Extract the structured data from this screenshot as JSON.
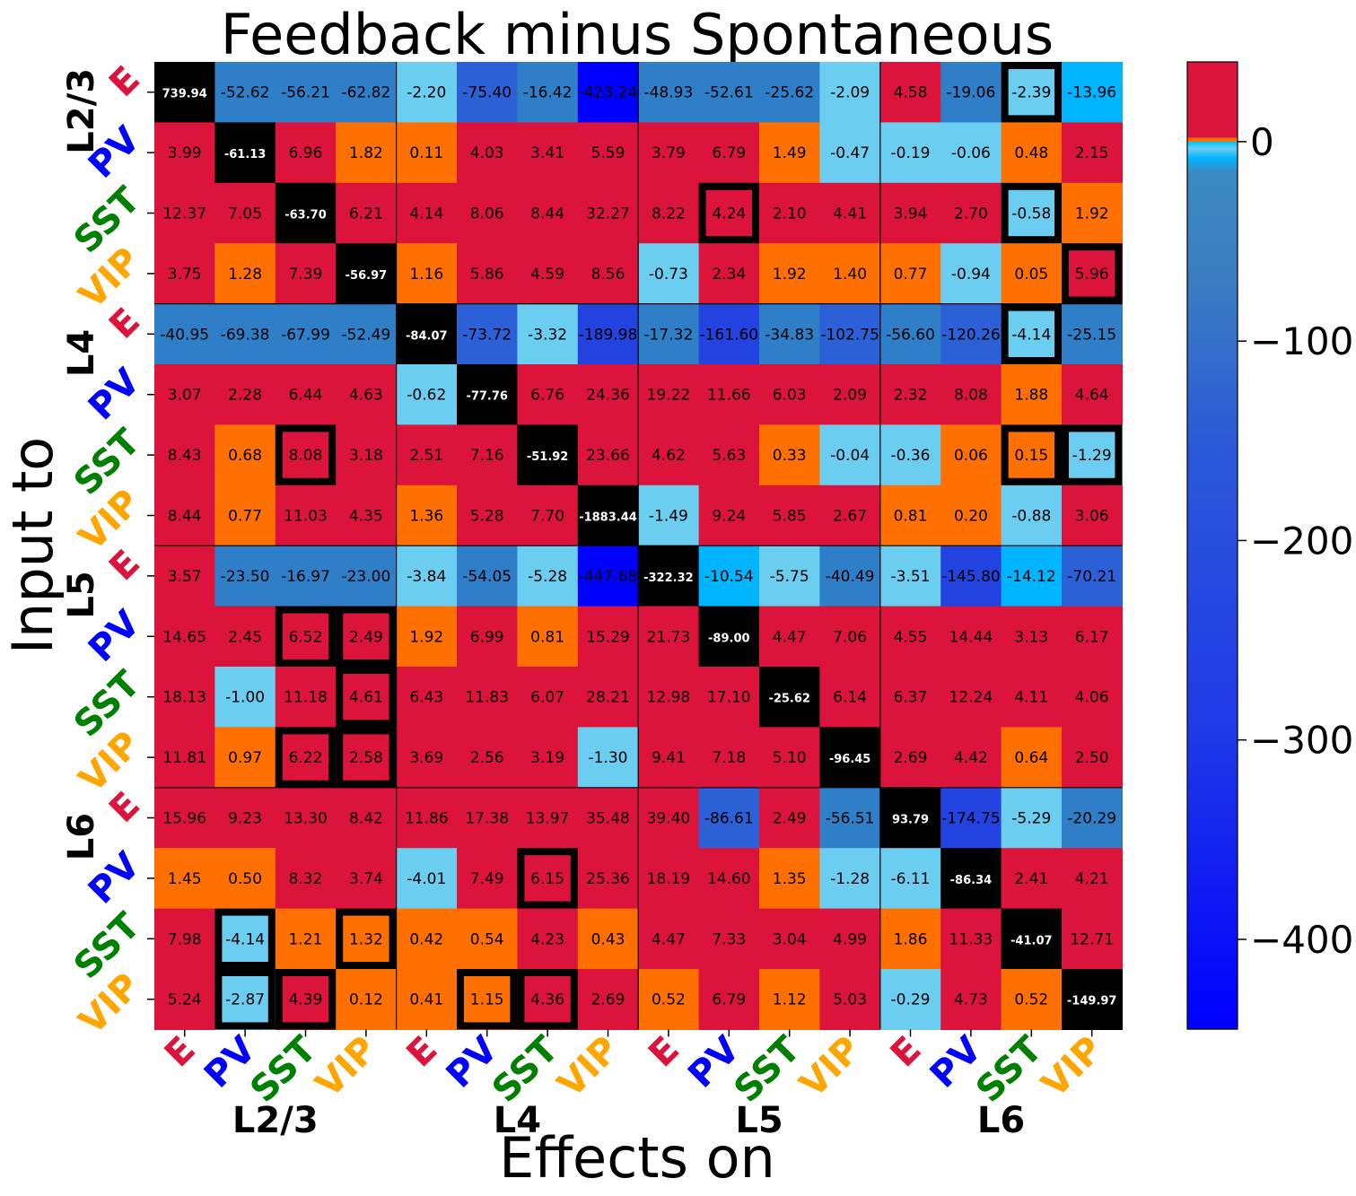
{
  "chart_data": {
    "type": "heatmap",
    "title": "Feedback minus Spontaneous",
    "xlabel": "Effects on",
    "ylabel": "Input to",
    "layers": [
      "L2/3",
      "L4",
      "L5",
      "L6"
    ],
    "cell_types": [
      "E",
      "PV",
      "SST",
      "VIP"
    ],
    "cell_type_colors": {
      "E": "#dc143c",
      "PV": "#0000ff",
      "SST": "#008000",
      "VIP": "#ffa500"
    },
    "x_tick_labels": [
      "E",
      "PV",
      "SST",
      "VIP",
      "E",
      "PV",
      "SST",
      "VIP",
      "E",
      "PV",
      "SST",
      "VIP",
      "E",
      "PV",
      "SST",
      "VIP"
    ],
    "y_tick_labels": [
      "E",
      "PV",
      "SST",
      "VIP",
      "E",
      "PV",
      "SST",
      "VIP",
      "E",
      "PV",
      "SST",
      "VIP",
      "E",
      "PV",
      "SST",
      "VIP"
    ],
    "values": [
      [
        739.94,
        -52.62,
        -56.21,
        -62.82,
        -2.2,
        -75.4,
        -16.42,
        -423.24,
        -48.93,
        -52.61,
        -25.62,
        -2.09,
        4.58,
        -19.06,
        -2.39,
        -13.96
      ],
      [
        3.99,
        -61.13,
        6.96,
        1.82,
        0.11,
        4.03,
        3.41,
        5.59,
        3.79,
        6.79,
        1.49,
        -0.47,
        -0.19,
        -0.06,
        0.48,
        2.15
      ],
      [
        12.37,
        7.05,
        -63.7,
        6.21,
        4.14,
        8.06,
        8.44,
        32.27,
        8.22,
        4.24,
        2.1,
        4.41,
        3.94,
        2.7,
        -0.58,
        1.92
      ],
      [
        3.75,
        1.28,
        7.39,
        -56.97,
        1.16,
        5.86,
        4.59,
        8.56,
        -0.73,
        2.34,
        1.92,
        1.4,
        0.77,
        -0.94,
        0.05,
        5.96
      ],
      [
        -40.95,
        -69.38,
        -67.99,
        -52.49,
        -84.07,
        -73.72,
        -3.32,
        -189.98,
        -17.32,
        -161.6,
        -34.83,
        -102.75,
        -56.6,
        -120.26,
        -4.14,
        -25.15
      ],
      [
        3.07,
        2.28,
        6.44,
        4.63,
        -0.62,
        -77.76,
        6.76,
        24.36,
        19.22,
        11.66,
        6.03,
        2.09,
        2.32,
        8.08,
        1.88,
        4.64
      ],
      [
        8.43,
        0.68,
        8.08,
        3.18,
        2.51,
        7.16,
        -51.92,
        23.66,
        4.62,
        5.63,
        0.33,
        -0.04,
        -0.36,
        0.06,
        0.15,
        -1.29
      ],
      [
        8.44,
        0.77,
        11.03,
        4.35,
        1.36,
        5.28,
        7.7,
        -1883.44,
        -1.49,
        9.24,
        5.85,
        2.67,
        0.81,
        0.2,
        -0.88,
        3.06
      ],
      [
        3.57,
        -23.5,
        -16.97,
        -23.0,
        -3.84,
        -54.05,
        -5.28,
        -447.68,
        -322.32,
        -10.54,
        -5.75,
        -40.49,
        -3.51,
        -145.8,
        -14.12,
        -70.21
      ],
      [
        14.65,
        2.45,
        6.52,
        2.49,
        1.92,
        6.99,
        0.81,
        15.29,
        21.73,
        -89.0,
        4.47,
        7.06,
        4.55,
        14.44,
        3.13,
        6.17
      ],
      [
        18.13,
        -1.0,
        11.18,
        4.61,
        6.43,
        11.83,
        6.07,
        28.21,
        12.98,
        17.1,
        -25.62,
        6.14,
        6.37,
        12.24,
        4.11,
        4.06
      ],
      [
        11.81,
        0.97,
        6.22,
        2.58,
        3.69,
        2.56,
        3.19,
        -1.3,
        9.41,
        7.18,
        5.1,
        -96.45,
        2.69,
        4.42,
        0.64,
        2.5
      ],
      [
        15.96,
        9.23,
        13.3,
        8.42,
        11.86,
        17.38,
        13.97,
        35.48,
        39.4,
        -86.61,
        2.49,
        -56.51,
        93.79,
        -174.75,
        -5.29,
        -20.29
      ],
      [
        1.45,
        0.5,
        8.32,
        3.74,
        -4.01,
        7.49,
        6.15,
        25.36,
        18.19,
        14.6,
        1.35,
        -1.28,
        -6.11,
        -86.34,
        2.41,
        4.21
      ],
      [
        7.98,
        -4.14,
        1.21,
        1.32,
        0.42,
        0.54,
        4.23,
        0.43,
        4.47,
        7.33,
        3.04,
        4.99,
        1.86,
        11.33,
        -41.07,
        12.71
      ],
      [
        5.24,
        -2.87,
        4.39,
        0.12,
        0.41,
        1.15,
        4.36,
        2.69,
        0.52,
        6.79,
        1.12,
        5.03,
        -0.29,
        4.73,
        0.52,
        -149.97
      ]
    ],
    "highlighted_cells": [
      [
        0,
        14
      ],
      [
        2,
        9
      ],
      [
        2,
        14
      ],
      [
        3,
        15
      ],
      [
        4,
        14
      ],
      [
        6,
        2
      ],
      [
        6,
        14
      ],
      [
        6,
        15
      ],
      [
        9,
        2
      ],
      [
        9,
        3
      ],
      [
        10,
        3
      ],
      [
        11,
        2
      ],
      [
        11,
        3
      ],
      [
        13,
        6
      ],
      [
        14,
        1
      ],
      [
        14,
        3
      ],
      [
        15,
        1
      ],
      [
        15,
        2
      ],
      [
        15,
        5
      ],
      [
        15,
        6
      ]
    ],
    "diagonal_color": "#000000",
    "colorbar": {
      "ticks": [
        0,
        -100,
        -200,
        -300,
        -400
      ],
      "tick_labels": [
        "0",
        "−100",
        "−200",
        "−300",
        "−400"
      ],
      "range": [
        -445,
        40
      ]
    },
    "colors": {
      "positive_high": "#dc143c",
      "positive_low": "#ff7000",
      "near_zero_negative": "#6bcdef",
      "mid_negative": "#3a7dc0",
      "strong_negative": "#0000ff"
    },
    "grid": false
  }
}
